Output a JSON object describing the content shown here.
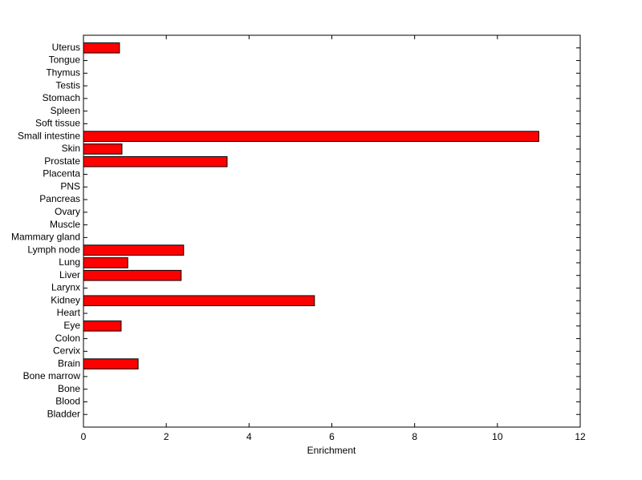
{
  "chart_data": {
    "type": "barh",
    "x_label": "Enrichment",
    "categories": [
      "Bladder",
      "Blood",
      "Bone",
      "Bone marrow",
      "Brain",
      "Cervix",
      "Colon",
      "Eye",
      "Heart",
      "Kidney",
      "Larynx",
      "Liver",
      "Lung",
      "Lymph node",
      "Mammary gland",
      "Muscle",
      "Ovary",
      "Pancreas",
      "PNS",
      "Placenta",
      "Prostate",
      "Skin",
      "Small intestine",
      "Soft tissue",
      "Spleen",
      "Stomach",
      "Testis",
      "Thymus",
      "Tongue",
      "Uterus"
    ],
    "values": [
      0,
      0,
      0,
      0,
      1.32,
      0,
      0,
      0.91,
      0,
      5.58,
      0,
      2.36,
      1.07,
      2.42,
      0,
      0,
      0,
      0,
      0,
      0,
      3.47,
      0.93,
      11.0,
      0,
      0,
      0,
      0,
      0,
      0,
      0.87
    ],
    "color": "#ff0000",
    "xlim": [
      0,
      12
    ],
    "xticks": [
      0,
      2,
      4,
      6,
      8,
      10,
      12
    ],
    "grid": false
  }
}
